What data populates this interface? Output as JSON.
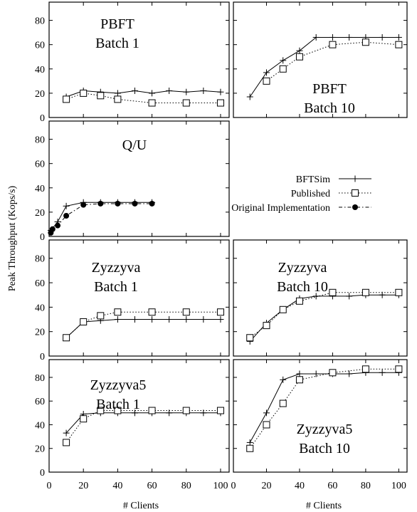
{
  "chart_data": {
    "type": "line",
    "ylabel": "Peak Throughput (Kops/s)",
    "xlabel": "# Clients",
    "xlim": [
      0,
      105
    ],
    "ylim": [
      0,
      95
    ],
    "xticks": [
      0,
      20,
      40,
      60,
      80,
      100
    ],
    "yticks": [
      0,
      20,
      40,
      60,
      80
    ],
    "legend": {
      "placement": "right of Q/U panel",
      "entries": [
        {
          "name": "BFTSim",
          "style": "solid line, plus markers"
        },
        {
          "name": "Published",
          "style": "dotted line, open square markers"
        },
        {
          "name": "Original Implementation",
          "style": "dash-dot line, filled circle markers"
        }
      ]
    },
    "panels": [
      {
        "title": [
          "PBFT",
          "Batch 1"
        ],
        "series": [
          {
            "name": "BFTSim",
            "x": [
              10,
              20,
              30,
              40,
              50,
              60,
              70,
              80,
              90,
              100
            ],
            "y": [
              17,
              22,
              21,
              20,
              22,
              20,
              22,
              21,
              22,
              21
            ]
          },
          {
            "name": "Published",
            "x": [
              10,
              20,
              30,
              40,
              60,
              80,
              100
            ],
            "y": [
              15,
              20,
              18,
              15,
              12,
              12,
              12
            ]
          }
        ]
      },
      {
        "title": [
          "PBFT",
          "Batch 10"
        ],
        "series": [
          {
            "name": "BFTSim",
            "x": [
              10,
              20,
              30,
              40,
              50,
              60,
              70,
              80,
              90,
              100
            ],
            "y": [
              17,
              37,
              47,
              55,
              66,
              66,
              66,
              66,
              66,
              66
            ]
          },
          {
            "name": "Published",
            "x": [
              20,
              30,
              40,
              60,
              80,
              100
            ],
            "y": [
              30,
              40,
              50,
              60,
              62,
              60
            ]
          }
        ]
      },
      {
        "title": [
          "Q/U"
        ],
        "series": [
          {
            "name": "BFTSim",
            "x": [
              1,
              5,
              10,
              20,
              30,
              40,
              50,
              60
            ],
            "y": [
              5,
              12,
              25,
              28,
              28,
              28,
              28,
              28
            ]
          },
          {
            "name": "Original Implementation",
            "x": [
              1,
              2,
              5,
              10,
              20,
              30,
              40,
              50,
              60
            ],
            "y": [
              3,
              6,
              9,
              17,
              26,
              27,
              27,
              27,
              27
            ]
          }
        ]
      },
      {
        "title": [
          "Zyzzyva",
          "Batch 1"
        ],
        "series": [
          {
            "name": "BFTSim",
            "x": [
              10,
              20,
              30,
              40,
              50,
              60,
              70,
              80,
              90,
              100
            ],
            "y": [
              15,
              28,
              29,
              30,
              30,
              30,
              30,
              30,
              30,
              30
            ]
          },
          {
            "name": "Published",
            "x": [
              10,
              20,
              30,
              40,
              60,
              80,
              100
            ],
            "y": [
              15,
              28,
              33,
              36,
              36,
              36,
              36
            ]
          }
        ]
      },
      {
        "title": [
          "Zyzzyva",
          "Batch 10"
        ],
        "series": [
          {
            "name": "BFTSim",
            "x": [
              10,
              20,
              30,
              40,
              50,
              60,
              70,
              80,
              90,
              100
            ],
            "y": [
              12,
              27,
              38,
              47,
              49,
              49,
              49,
              50,
              50,
              50
            ]
          },
          {
            "name": "Published",
            "x": [
              10,
              20,
              30,
              40,
              60,
              80,
              100
            ],
            "y": [
              15,
              25,
              38,
              45,
              52,
              52,
              52
            ]
          }
        ]
      },
      {
        "title": [
          "Zyzzyva5",
          "Batch 1"
        ],
        "series": [
          {
            "name": "BFTSim",
            "x": [
              10,
              20,
              30,
              40,
              50,
              60,
              70,
              80,
              90,
              100
            ],
            "y": [
              33,
              49,
              50,
              50,
              50,
              50,
              50,
              50,
              50,
              50
            ]
          },
          {
            "name": "Published",
            "x": [
              10,
              20,
              30,
              40,
              60,
              80,
              100
            ],
            "y": [
              25,
              45,
              52,
              52,
              52,
              52,
              52
            ]
          }
        ]
      },
      {
        "title": [
          "Zyzzyva5",
          "Batch 10"
        ],
        "series": [
          {
            "name": "BFTSim",
            "x": [
              10,
              20,
              30,
              40,
              50,
              60,
              70,
              80,
              90,
              100
            ],
            "y": [
              25,
              50,
              78,
              83,
              83,
              83,
              83,
              84,
              84,
              84
            ]
          },
          {
            "name": "Published",
            "x": [
              10,
              20,
              30,
              40,
              60,
              80,
              100
            ],
            "y": [
              20,
              40,
              58,
              78,
              84,
              87,
              87
            ]
          }
        ]
      }
    ]
  }
}
